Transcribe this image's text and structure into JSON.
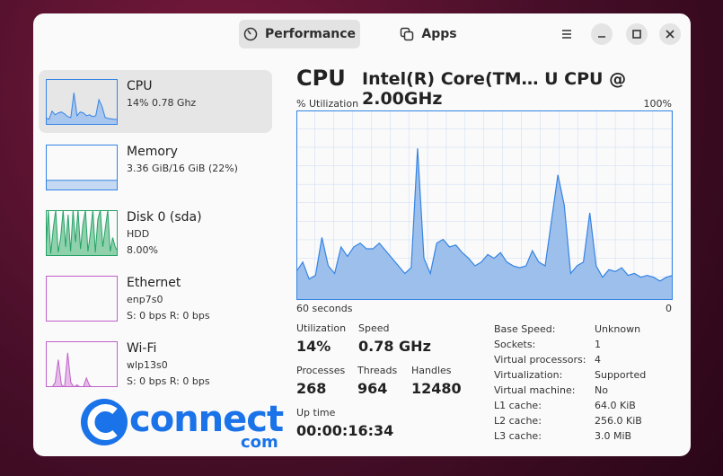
{
  "header": {
    "tabs": [
      "Performance",
      "Apps"
    ]
  },
  "sidebar": [
    {
      "title": "CPU",
      "lines": [
        "14% 0.78 Ghz"
      ],
      "color": "#3584e4",
      "fill": "#a8c6ee",
      "graph": [
        15,
        12,
        30,
        22,
        26,
        28,
        24,
        18,
        16,
        70,
        20,
        28,
        26,
        20,
        22,
        18,
        20,
        55,
        40,
        16,
        14,
        13,
        12,
        12
      ]
    },
    {
      "title": "Memory",
      "lines": [
        "3.36 GiB/16 GiB (22%)"
      ],
      "color": "#3584e4",
      "fill": "#c5d9f3",
      "graph": [
        22,
        22,
        22,
        22,
        22,
        22,
        22,
        22,
        22,
        22,
        22,
        22
      ]
    },
    {
      "title": "Disk 0 (sda)",
      "lines": [
        "HDD",
        "8.00%"
      ],
      "color": "#26a269",
      "fill": "#8fd1ab",
      "graph": [
        10,
        100,
        5,
        60,
        100,
        8,
        40,
        100,
        20,
        90,
        10,
        100,
        30,
        100,
        15,
        70,
        100,
        10,
        50,
        100,
        8,
        80,
        100,
        20,
        60,
        100,
        10,
        40,
        20,
        10
      ]
    },
    {
      "title": "Ethernet",
      "lines": [
        "enp7s0",
        "S: 0 bps R: 0 bps"
      ],
      "color": "#c061cb",
      "fill": "#e6bde9",
      "graph": [
        0,
        0,
        0,
        0,
        0,
        0,
        0,
        0,
        0,
        0,
        0,
        0
      ]
    },
    {
      "title": "Wi-Fi",
      "lines": [
        "wlp13s0",
        "S: 0 bps R: 0 bps"
      ],
      "color": "#c061cb",
      "fill": "#e6bde9",
      "graph": [
        0,
        0,
        0,
        10,
        60,
        5,
        0,
        75,
        10,
        0,
        5,
        0,
        0,
        20,
        3,
        0,
        0,
        0,
        0,
        0,
        0,
        0,
        0,
        0
      ]
    }
  ],
  "cpu": {
    "title": "CPU",
    "model": "Intel(R) Core(TM… U CPU @ 2.00GHz",
    "y_label": "% Utilization",
    "y_max_label": "100%",
    "x_start_label": "60 seconds",
    "x_end_label": "0",
    "ylim": [
      0,
      100
    ],
    "color": "#3584e4",
    "fill": "#9dbfec",
    "values": [
      15,
      20,
      11,
      13,
      33,
      18,
      14,
      28,
      23,
      28,
      30,
      27,
      27,
      30,
      26,
      22,
      18,
      14,
      17,
      80,
      22,
      14,
      30,
      32,
      28,
      29,
      25,
      22,
      18,
      20,
      24,
      22,
      25,
      20,
      18,
      17,
      18,
      26,
      20,
      18,
      42,
      66,
      50,
      14,
      18,
      20,
      46,
      18,
      12,
      16,
      15,
      17,
      13,
      14,
      12,
      13,
      12,
      10,
      12,
      13
    ]
  },
  "stats": [
    {
      "label": "Utilization",
      "value": "14%"
    },
    {
      "label": "Speed",
      "value": "0.78 GHz"
    },
    {
      "label": "Processes",
      "value": "268"
    },
    {
      "label": "Threads",
      "value": "964"
    },
    {
      "label": "Handles",
      "value": "12480"
    },
    {
      "label": "Up time",
      "value": "00:00:16:34"
    }
  ],
  "details": [
    [
      "Base Speed:",
      "Unknown"
    ],
    [
      "Sockets:",
      "1"
    ],
    [
      "Virtual processors:",
      "4"
    ],
    [
      "Virtualization:",
      "Supported"
    ],
    [
      "Virtual machine:",
      "No"
    ],
    [
      "L1 cache:",
      "64.0 KiB"
    ],
    [
      "L2 cache:",
      "256.0 KiB"
    ],
    [
      "L3 cache:",
      "3.0 MiB"
    ]
  ],
  "watermark": {
    "text": "connect",
    "suffix": "com"
  }
}
